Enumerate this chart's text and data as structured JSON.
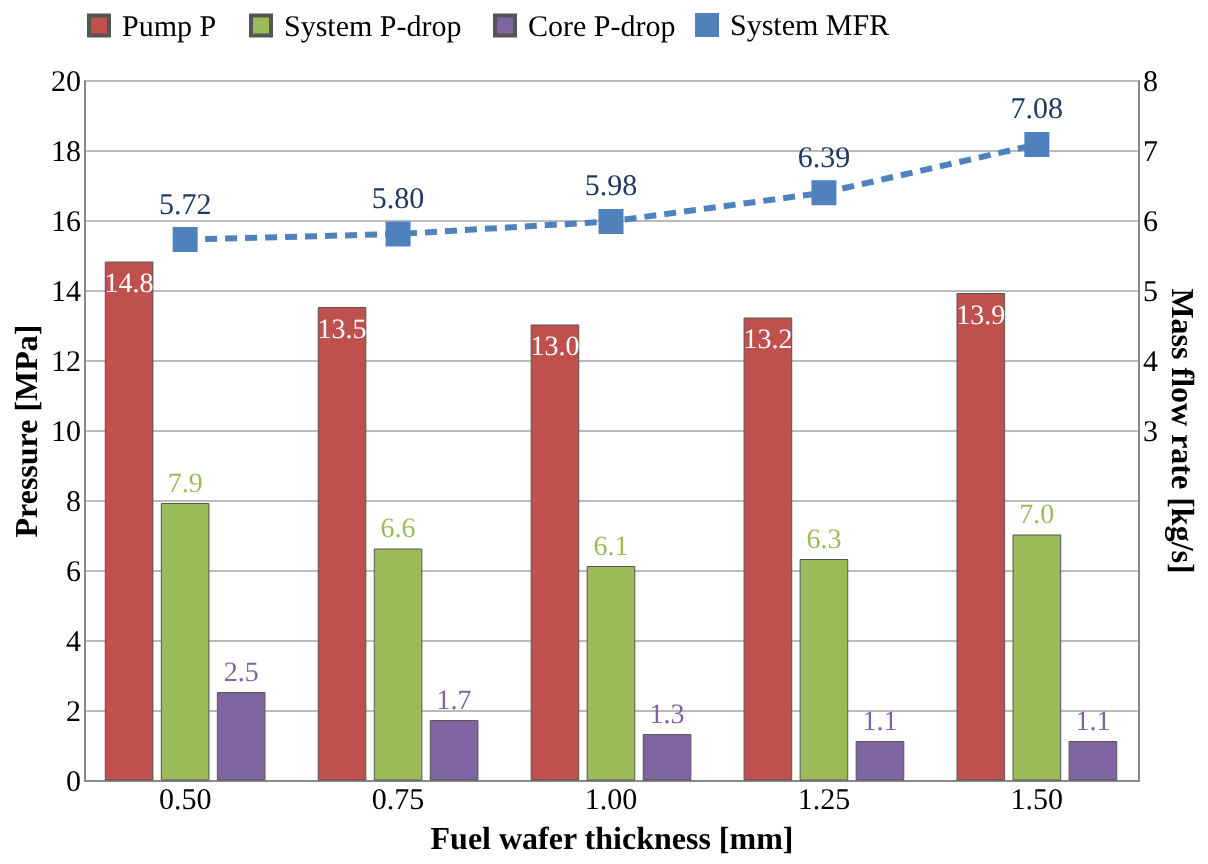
{
  "chart_data": {
    "type": "bar",
    "xlabel": "Fuel wafer thickness [mm]",
    "ylabel": "Pressure [MPa]",
    "y2label": "Mass flow rate [kg/s]",
    "categories": [
      "0.50",
      "0.75",
      "1.00",
      "1.25",
      "1.50"
    ],
    "series": [
      {
        "name": "Pump P",
        "color": "#c0504d",
        "values": [
          14.8,
          13.5,
          13.0,
          13.2,
          13.9
        ],
        "value_labels": [
          "14.8",
          "13.5",
          "13.0",
          "13.2",
          "13.9"
        ]
      },
      {
        "name": "System P-drop",
        "color": "#9bbb59",
        "values": [
          7.9,
          6.6,
          6.1,
          6.3,
          7.0
        ],
        "value_labels": [
          "7.9",
          "6.6",
          "6.1",
          "6.3",
          "7.0"
        ]
      },
      {
        "name": "Core P-drop",
        "color": "#8064a2",
        "values": [
          2.5,
          1.7,
          1.3,
          1.1,
          1.1
        ],
        "value_labels": [
          "2.5",
          "1.7",
          "1.3",
          "1.1",
          "1.1"
        ]
      },
      {
        "name": "System MFR",
        "color": "#4f81bd",
        "type": "line",
        "axis": "y2",
        "marker": "square",
        "line_style": "dashed",
        "values": [
          5.72,
          5.8,
          5.98,
          6.39,
          7.08
        ],
        "value_labels": [
          "5.72",
          "5.80",
          "5.98",
          "6.39",
          "7.08"
        ]
      }
    ],
    "ylim": [
      0,
      20
    ],
    "yticks": [
      0,
      2,
      4,
      6,
      8,
      10,
      12,
      14,
      16,
      18,
      20
    ],
    "y2lim": [
      -2,
      8
    ],
    "y2ticks": [
      3,
      4,
      5,
      6,
      7,
      8
    ],
    "grid": "y",
    "legend": "top"
  }
}
